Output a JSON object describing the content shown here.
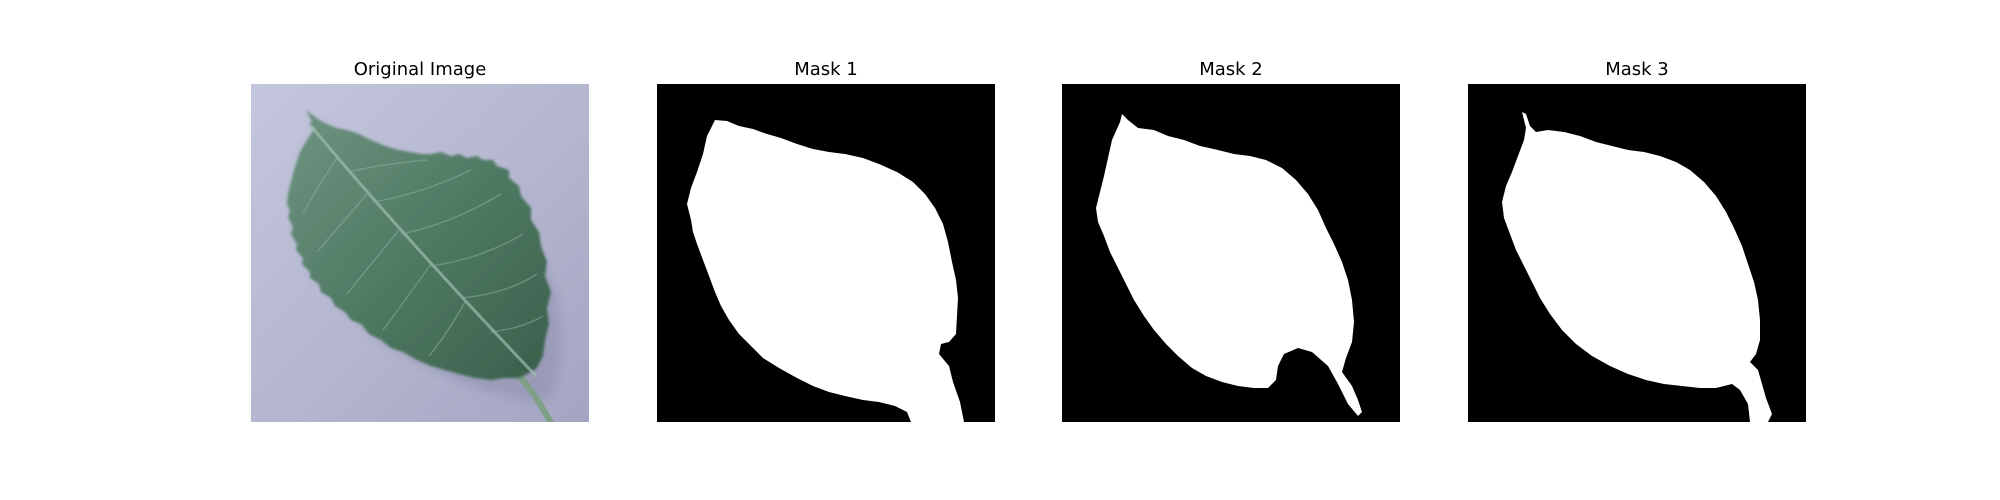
{
  "panels": [
    {
      "title": "Original Image",
      "kind": "photo",
      "subject": "green leaf on pale lavender-grey background"
    },
    {
      "title": "Mask 1",
      "kind": "binary-mask",
      "foreground": "#ffffff",
      "background": "#000000"
    },
    {
      "title": "Mask 2",
      "kind": "binary-mask",
      "foreground": "#ffffff",
      "background": "#000000"
    },
    {
      "title": "Mask 3",
      "kind": "binary-mask",
      "foreground": "#ffffff",
      "background": "#000000"
    }
  ],
  "colors": {
    "page_background": "#ffffff",
    "photo_background": "#b7b9d2",
    "leaf_fill": "#4f7a63",
    "leaf_dark": "#3d6450",
    "leaf_vein": "#8fb3a0",
    "mask_foreground": "#ffffff",
    "mask_background": "#000000"
  }
}
